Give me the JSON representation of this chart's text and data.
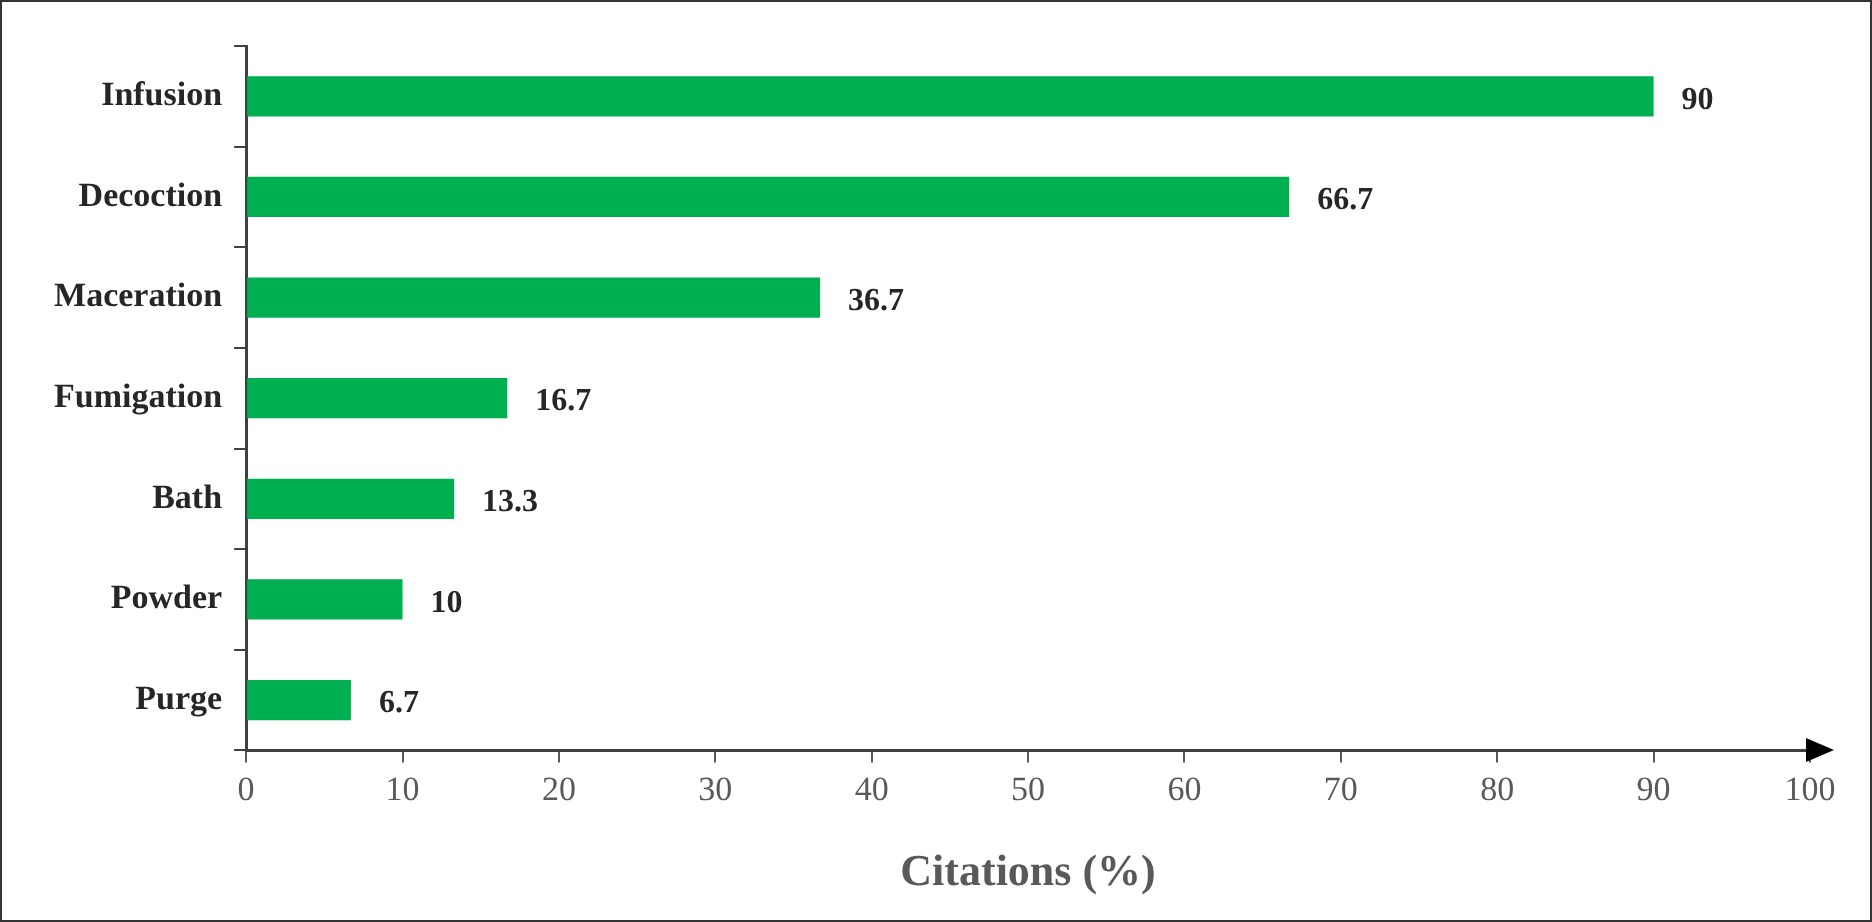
{
  "chart_data": {
    "type": "bar",
    "orientation": "horizontal",
    "xlabel": "Citations (%)",
    "categories": [
      "Infusion",
      "Decoction",
      "Maceration",
      "Fumigation",
      "Bath",
      "Powder",
      "Purge"
    ],
    "values": [
      90,
      66.7,
      36.7,
      16.7,
      13.3,
      10,
      6.7
    ],
    "color": "#00b050",
    "xlim": [
      0,
      100
    ],
    "xticks": [
      0,
      10,
      20,
      30,
      40,
      50,
      60,
      70,
      80,
      90,
      100
    ],
    "grid": false,
    "legend": false,
    "data_labels": true
  }
}
